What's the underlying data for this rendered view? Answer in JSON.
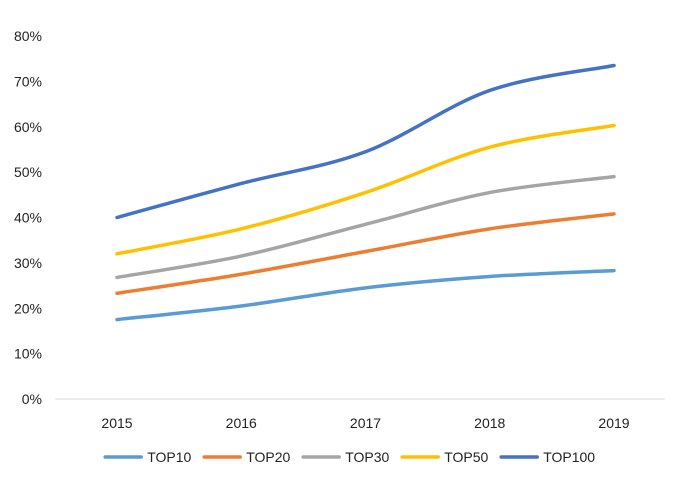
{
  "chart_data": {
    "type": "line",
    "title": "",
    "xlabel": "",
    "ylabel": "",
    "categories": [
      "2015",
      "2016",
      "2017",
      "2018",
      "2019"
    ],
    "ylim": [
      0,
      80
    ],
    "yticks": [
      0,
      10,
      20,
      30,
      40,
      50,
      60,
      70,
      80
    ],
    "ytick_labels": [
      "0%",
      "10%",
      "20%",
      "30%",
      "40%",
      "50%",
      "60%",
      "70%",
      "80%"
    ],
    "y_unit": "%",
    "grid": false,
    "smooth": true,
    "legend_position": "bottom",
    "series": [
      {
        "name": "TOP10",
        "color": "#5b9bd5",
        "values": [
          17.5,
          20.5,
          24.5,
          27,
          28.3
        ]
      },
      {
        "name": "TOP20",
        "color": "#ed7d31",
        "values": [
          23.3,
          27.5,
          32.5,
          37.5,
          40.8
        ]
      },
      {
        "name": "TOP30",
        "color": "#a5a5a5",
        "values": [
          26.8,
          31.5,
          38.5,
          45.5,
          49
        ]
      },
      {
        "name": "TOP50",
        "color": "#ffc000",
        "values": [
          32,
          37.5,
          45.5,
          55.5,
          60.3
        ]
      },
      {
        "name": "TOP100",
        "color": "#4472c4",
        "values": [
          40,
          47.5,
          54.5,
          68,
          73.5
        ]
      }
    ]
  }
}
